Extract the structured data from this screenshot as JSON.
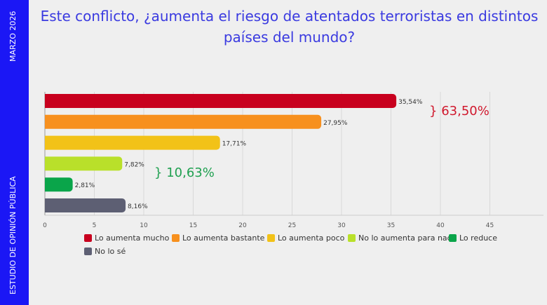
{
  "sidebar": {
    "date": "MARZO 2026",
    "label": "ESTUDIO DE OPINIÓN PÚBLICA"
  },
  "chart_data": {
    "type": "bar",
    "orientation": "horizontal",
    "title": "Este conflicto, ¿aumenta el riesgo de atentados terroristas en distintos países del mundo?",
    "categories": [
      "Lo aumenta mucho",
      "Lo aumenta bastante",
      "Lo aumenta poco",
      "No lo aumenta para nada",
      "Lo reduce",
      "No lo sé"
    ],
    "values": [
      35.54,
      27.95,
      17.71,
      7.82,
      2.81,
      8.16
    ],
    "data_labels": [
      "35,54%",
      "27,95%",
      "17,71%",
      "7,82%",
      "2,81%",
      "8,16%"
    ],
    "colors": [
      "#c8001e",
      "#f7901e",
      "#f2c218",
      "#b9e02a",
      "#0aa54a",
      "#5d5f73"
    ],
    "xlim": [
      0,
      50
    ],
    "xticks": [
      0,
      5,
      10,
      15,
      20,
      25,
      30,
      35,
      40,
      45
    ],
    "grid": true,
    "legend": "bottom",
    "annotations": [
      {
        "text": "63,50%",
        "color": "#d0182d"
      },
      {
        "text": "10,63%",
        "color": "#1fa050"
      }
    ]
  }
}
